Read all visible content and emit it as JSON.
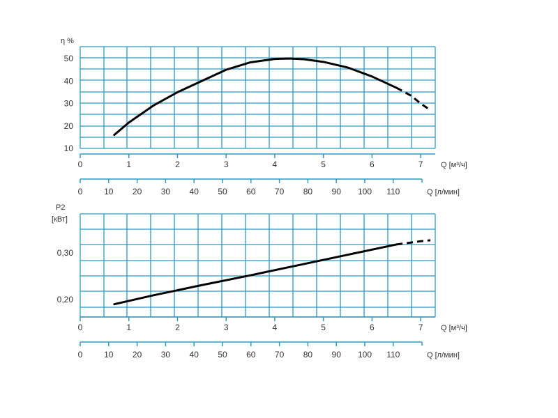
{
  "colors": {
    "grid": "#2a9bc4",
    "axis": "#2a9bc4",
    "curve": "#000000",
    "text": "#333333"
  },
  "flow_scale": {
    "unit_label": "Q [м³/ч]",
    "ticks": [
      "0",
      "1",
      "2",
      "3",
      "4",
      "5",
      "6",
      "7"
    ],
    "range": [
      0,
      7.3
    ]
  },
  "lpm_scale": {
    "unit_label": "Q [л/мин]",
    "ticks": [
      "0",
      "10",
      "20",
      "30",
      "40",
      "50",
      "60",
      "70",
      "80",
      "90",
      "100",
      "110"
    ]
  },
  "chart_data": [
    {
      "type": "line",
      "ylabel": "η %",
      "y_ticks": [
        "10",
        "20",
        "30",
        "40",
        "50"
      ],
      "ylim": [
        10,
        50
      ],
      "xlim": [
        0,
        7.3
      ],
      "grid": true,
      "series": [
        {
          "solid": {
            "x": [
              0.7,
              1.0,
              1.5,
              2.0,
              2.5,
              3.0,
              3.5,
              4.0,
              4.3,
              4.6,
              5.0,
              5.5,
              6.0,
              6.5
            ],
            "y": [
              16,
              21.5,
              29,
              35,
              40,
              45,
              48.3,
              49.8,
              50,
              49.7,
              48.5,
              46,
              42,
              37
            ]
          },
          "dashed": {
            "x": [
              6.5,
              6.8,
              7.0,
              7.2
            ],
            "y": [
              37,
              33.5,
              30,
              27
            ]
          }
        }
      ]
    },
    {
      "type": "line",
      "ylabel": "P2",
      "ylabel2": "[кВт]",
      "y_ticks": [
        "0,20",
        "0,30"
      ],
      "ylim": [
        0.15,
        0.35
      ],
      "xlim": [
        0,
        7.3
      ],
      "grid": true,
      "series": [
        {
          "solid": {
            "x": [
              0.7,
              1.5,
              2.5,
              3.5,
              4.5,
              5.5,
              6.5
            ],
            "y": [
              0.19,
              0.209,
              0.231,
              0.252,
              0.274,
              0.296,
              0.318
            ]
          },
          "dashed": {
            "x": [
              6.5,
              7.0,
              7.2
            ],
            "y": [
              0.318,
              0.325,
              0.327
            ]
          }
        }
      ]
    }
  ]
}
